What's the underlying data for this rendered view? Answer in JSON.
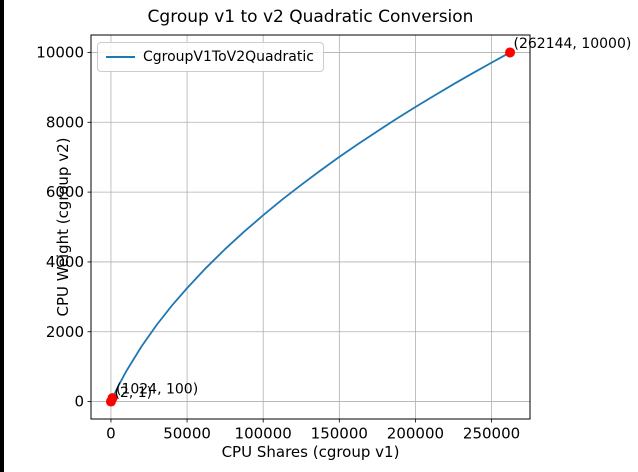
{
  "chart_data": {
    "type": "line",
    "title": "Cgroup v1 to v2 Quadratic Conversion",
    "xlabel": "CPU Shares (cgroup v1)",
    "ylabel": "CPU Weight (cgroup v2)",
    "legend": {
      "label": "CgroupV1ToV2Quadratic",
      "position": "upper left"
    },
    "grid": true,
    "xlim": [
      -13105,
      275251
    ],
    "ylim": [
      -499,
      10500
    ],
    "xticks": [
      0,
      50000,
      100000,
      150000,
      200000,
      250000
    ],
    "yticks": [
      0,
      2000,
      4000,
      6000,
      8000,
      10000
    ],
    "colors": {
      "line": "#1f77b4",
      "marker": "#ff0000",
      "grid": "#b0b0b0",
      "spine": "#000000"
    },
    "series": [
      {
        "name": "CgroupV1ToV2Quadratic",
        "color": "#1f77b4",
        "points": [
          [
            2,
            1
          ],
          [
            1024,
            100
          ],
          [
            5000,
            460
          ],
          [
            10000,
            866
          ],
          [
            20000,
            1576
          ],
          [
            30000,
            2193
          ],
          [
            40000,
            2746
          ],
          [
            50000,
            3251
          ],
          [
            62500,
            3832
          ],
          [
            75000,
            4368
          ],
          [
            87500,
            4868
          ],
          [
            100000,
            5339
          ],
          [
            112500,
            5785
          ],
          [
            125000,
            6210
          ],
          [
            137500,
            6616
          ],
          [
            150000,
            7007
          ],
          [
            162500,
            7382
          ],
          [
            175000,
            7745
          ],
          [
            187500,
            8096
          ],
          [
            200000,
            8437
          ],
          [
            212500,
            8768
          ],
          [
            225000,
            9090
          ],
          [
            237500,
            9403
          ],
          [
            250000,
            9709
          ],
          [
            262144,
            10000
          ]
        ]
      }
    ],
    "annotated_points": [
      {
        "x": 2,
        "y": 1,
        "label": "(2, 1)"
      },
      {
        "x": 1024,
        "y": 100,
        "label": "(1024, 100)"
      },
      {
        "x": 262144,
        "y": 10000,
        "label": "(262144, 10000)"
      }
    ]
  }
}
